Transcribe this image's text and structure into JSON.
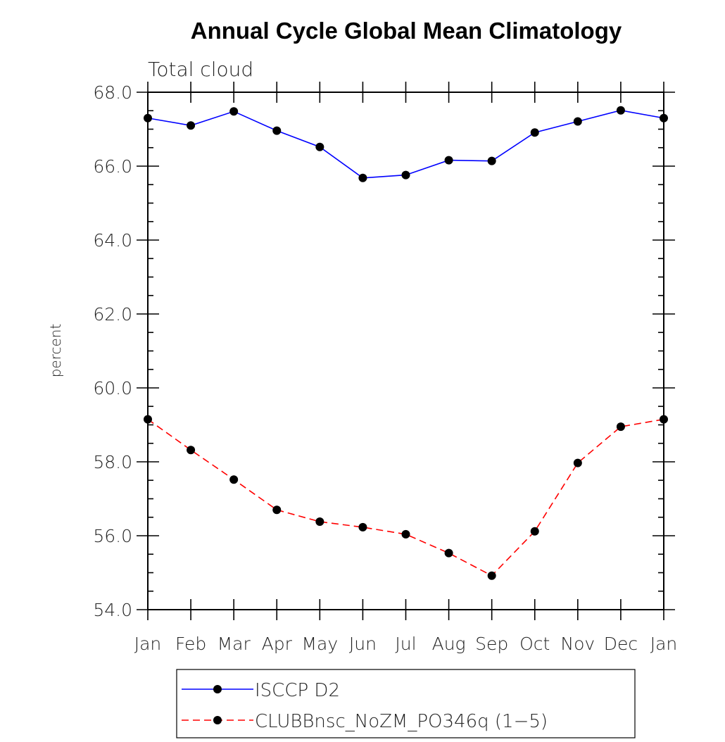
{
  "chart_data": {
    "type": "line",
    "title": "Annual Cycle Global Mean Climatology",
    "subtitle": "Total cloud",
    "ylabel": "percent",
    "xlabel": "",
    "categories": [
      "Jan",
      "Feb",
      "Mar",
      "Apr",
      "May",
      "Jun",
      "Jul",
      "Aug",
      "Sep",
      "Oct",
      "Nov",
      "Dec",
      "Jan"
    ],
    "ylim": [
      54.0,
      68.0
    ],
    "yticks": [
      "54.0",
      "56.0",
      "58.0",
      "60.0",
      "62.0",
      "64.0",
      "66.0",
      "68.0"
    ],
    "grid": false,
    "legend_position": "bottom",
    "series": [
      {
        "name": "ISCCP D2",
        "color": "#0000ff",
        "dash": "solid",
        "marker": "filled-circle",
        "values": [
          67.3,
          67.1,
          67.48,
          66.96,
          66.52,
          65.68,
          65.76,
          66.16,
          66.14,
          66.91,
          67.21,
          67.51,
          67.3
        ]
      },
      {
        "name": "CLUBBnsc_NoZM_PO346q (1−5)",
        "color": "#ff0000",
        "dash": "dashed",
        "marker": "filled-circle",
        "values": [
          59.15,
          58.32,
          57.52,
          56.7,
          56.38,
          56.23,
          56.04,
          55.53,
          54.92,
          56.12,
          57.97,
          58.95,
          59.15
        ]
      }
    ]
  }
}
